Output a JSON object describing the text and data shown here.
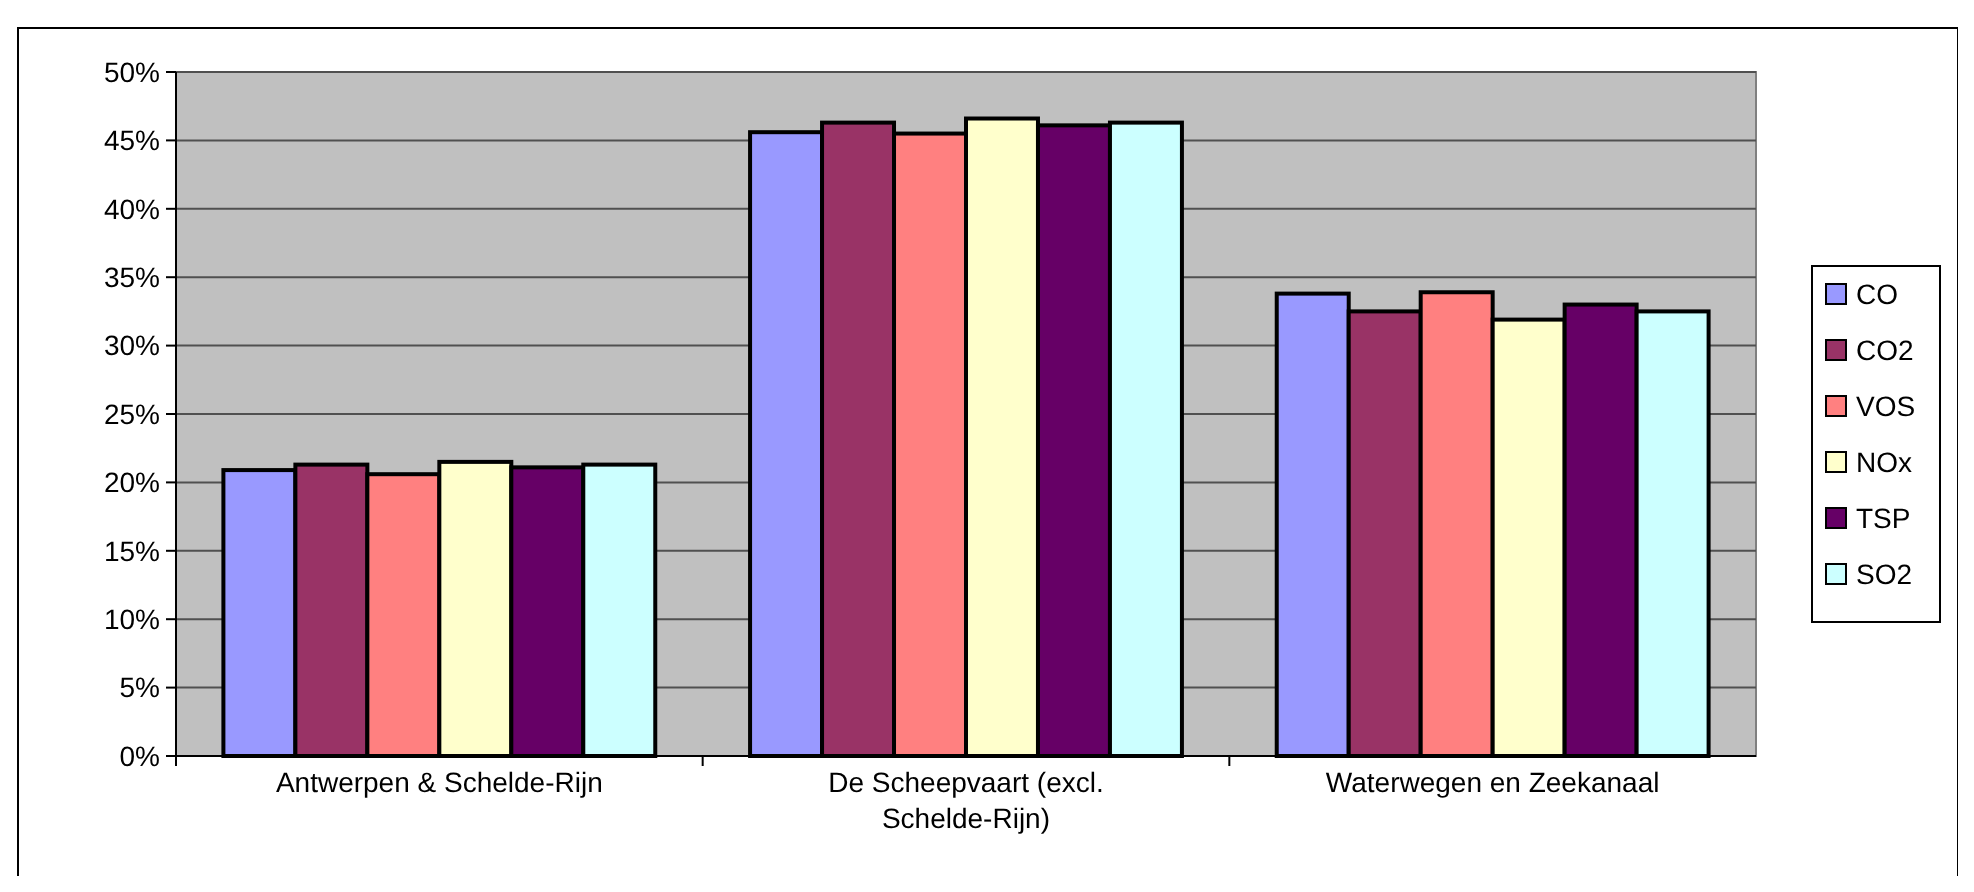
{
  "chart_data": {
    "type": "bar",
    "categories": [
      "Antwerpen & Schelde-Rijn",
      "De Scheepvaart (excl. Schelde-Rijn)",
      "Waterwegen en Zeekanaal"
    ],
    "series": [
      {
        "name": "CO",
        "color": "#9999ff",
        "values": [
          20.9,
          45.6,
          33.8
        ]
      },
      {
        "name": "CO2",
        "color": "#993366",
        "values": [
          21.3,
          46.3,
          32.5
        ]
      },
      {
        "name": "VOS",
        "color": "#ff8080",
        "values": [
          20.6,
          45.5,
          33.9
        ]
      },
      {
        "name": "NOx",
        "color": "#ffffcc",
        "values": [
          21.5,
          46.6,
          31.9
        ]
      },
      {
        "name": "TSP",
        "color": "#660066",
        "values": [
          21.1,
          46.1,
          33.0
        ]
      },
      {
        "name": "SO2",
        "color": "#ccffff",
        "values": [
          21.3,
          46.3,
          32.5
        ]
      }
    ],
    "ylim": [
      0,
      50
    ],
    "yticks": [
      {
        "value": 0,
        "label": "0%"
      },
      {
        "value": 5,
        "label": "5%"
      },
      {
        "value": 10,
        "label": "10%"
      },
      {
        "value": 15,
        "label": "15%"
      },
      {
        "value": 20,
        "label": "20%"
      },
      {
        "value": 25,
        "label": "25%"
      },
      {
        "value": 30,
        "label": "30%"
      },
      {
        "value": 35,
        "label": "35%"
      },
      {
        "value": 40,
        "label": "40%"
      },
      {
        "value": 45,
        "label": "45%"
      },
      {
        "value": 50,
        "label": "50%"
      }
    ],
    "grid": "y",
    "legend": "right"
  }
}
